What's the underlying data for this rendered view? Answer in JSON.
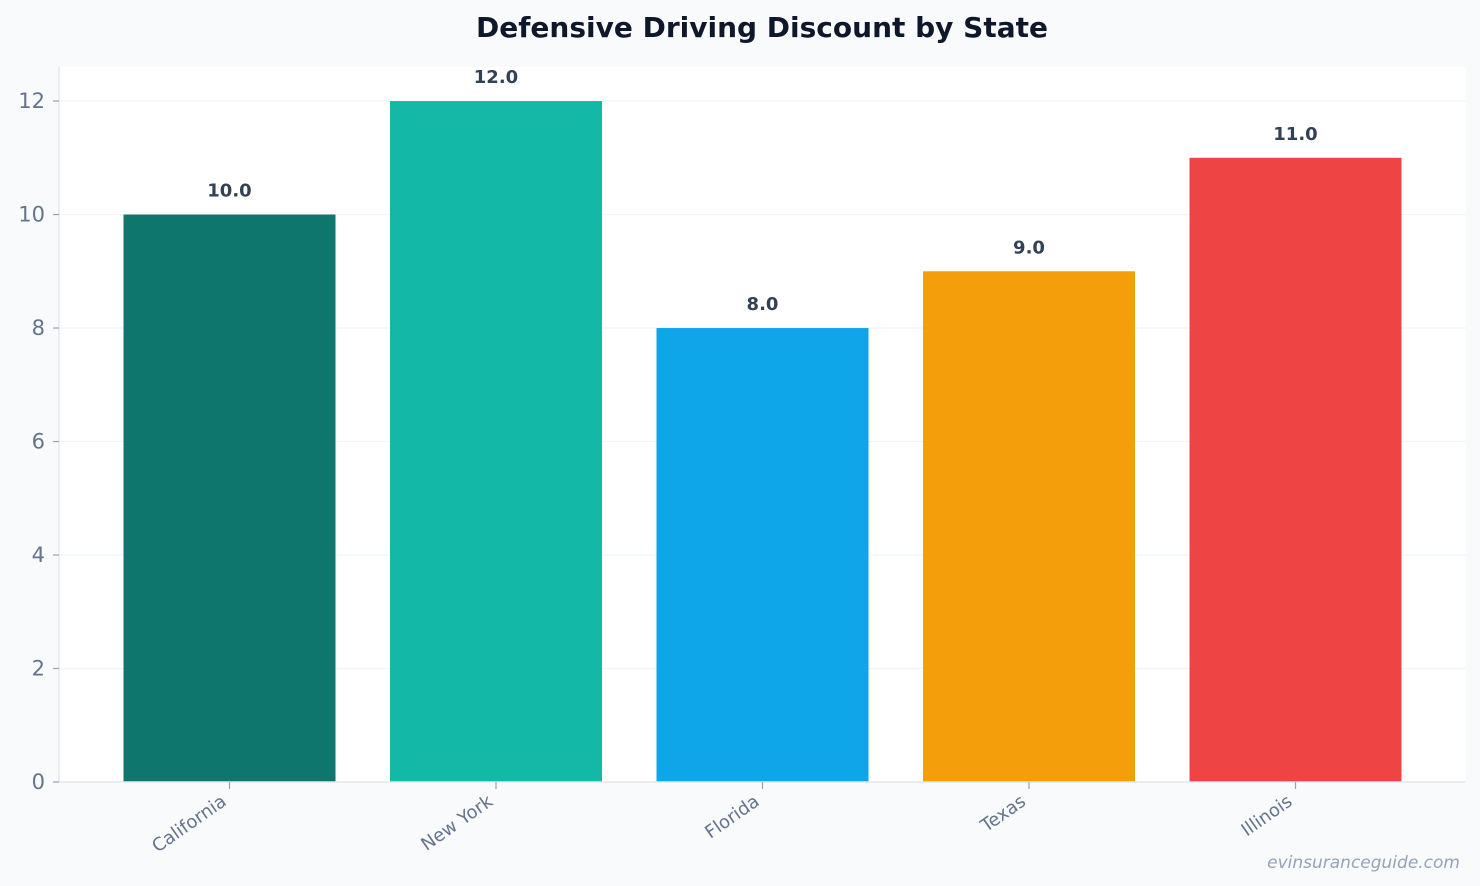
{
  "chart_data": {
    "type": "bar",
    "title": "Defensive Driving Discount by State",
    "xlabel": "",
    "ylabel": "",
    "categories": [
      "California",
      "New York",
      "Florida",
      "Texas",
      "Illinois"
    ],
    "values": [
      10.0,
      12.0,
      8.0,
      9.0,
      11.0
    ],
    "value_labels": [
      "10.0",
      "12.0",
      "8.0",
      "9.0",
      "11.0"
    ],
    "colors": [
      "#0f766e",
      "#14b8a6",
      "#0ea5e9",
      "#f59e0b",
      "#ef4444"
    ],
    "ylim": [
      0,
      12.6
    ],
    "yticks": [
      0,
      2,
      4,
      6,
      8,
      10,
      12
    ],
    "grid": true,
    "legend": "none"
  },
  "watermark": "evinsuranceguide.com"
}
